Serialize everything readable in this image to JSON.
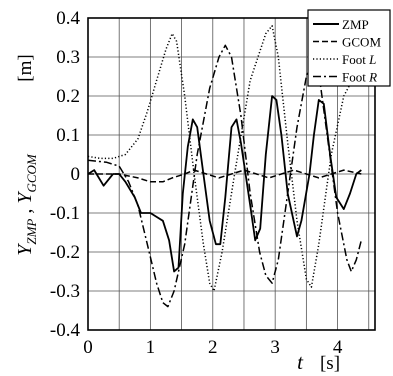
{
  "chart_data": {
    "type": "line",
    "xlabel": "t",
    "xunit": "[s]",
    "ylabel": "Y_ZMP , Y_GCOM",
    "yunit": "[m]",
    "xlim": [
      0,
      4.6
    ],
    "ylim": [
      -0.4,
      0.4
    ],
    "xticks": [
      "0",
      "1",
      "2",
      "3",
      "4"
    ],
    "yticks": [
      "0.4",
      "0.3",
      "0.2",
      "0.1",
      "0",
      "-0.1",
      "-0.2",
      "-0.3",
      "-0.4"
    ],
    "grid": true,
    "legend_position": "top-right",
    "series": [
      {
        "name": "ZMP",
        "style": "solid",
        "points": [
          [
            0,
            0.0
          ],
          [
            0.1,
            0.01
          ],
          [
            0.25,
            -0.03
          ],
          [
            0.4,
            0.0
          ],
          [
            0.5,
            0.0
          ],
          [
            0.6,
            -0.02
          ],
          [
            0.75,
            -0.06
          ],
          [
            0.85,
            -0.1
          ],
          [
            1.0,
            -0.1
          ],
          [
            1.1,
            -0.11
          ],
          [
            1.2,
            -0.12
          ],
          [
            1.3,
            -0.17
          ],
          [
            1.38,
            -0.25
          ],
          [
            1.45,
            -0.24
          ],
          [
            1.52,
            -0.05
          ],
          [
            1.6,
            0.07
          ],
          [
            1.68,
            0.14
          ],
          [
            1.75,
            0.12
          ],
          [
            1.85,
            0.0
          ],
          [
            1.95,
            -0.12
          ],
          [
            2.05,
            -0.18
          ],
          [
            2.12,
            -0.18
          ],
          [
            2.2,
            -0.06
          ],
          [
            2.3,
            0.12
          ],
          [
            2.38,
            0.14
          ],
          [
            2.45,
            0.08
          ],
          [
            2.6,
            -0.08
          ],
          [
            2.68,
            -0.17
          ],
          [
            2.76,
            -0.14
          ],
          [
            2.85,
            0.05
          ],
          [
            2.95,
            0.2
          ],
          [
            3.02,
            0.19
          ],
          [
            3.1,
            0.1
          ],
          [
            3.2,
            -0.05
          ],
          [
            3.35,
            -0.16
          ],
          [
            3.42,
            -0.12
          ],
          [
            3.55,
            0.0
          ],
          [
            3.62,
            0.1
          ],
          [
            3.7,
            0.19
          ],
          [
            3.78,
            0.18
          ],
          [
            3.88,
            0.05
          ],
          [
            3.98,
            -0.06
          ],
          [
            4.1,
            -0.09
          ],
          [
            4.2,
            -0.05
          ],
          [
            4.3,
            0.0
          ],
          [
            4.38,
            0.01
          ]
        ]
      },
      {
        "name": "GCOM",
        "style": "dashed",
        "points": [
          [
            0,
            0.0
          ],
          [
            0.5,
            0.0
          ],
          [
            0.8,
            -0.01
          ],
          [
            1.0,
            -0.02
          ],
          [
            1.2,
            -0.02
          ],
          [
            1.35,
            -0.01
          ],
          [
            1.55,
            0.0
          ],
          [
            1.7,
            0.01
          ],
          [
            1.9,
            0.0
          ],
          [
            2.1,
            -0.01
          ],
          [
            2.3,
            0.0
          ],
          [
            2.5,
            0.01
          ],
          [
            2.7,
            0.0
          ],
          [
            2.9,
            -0.01
          ],
          [
            3.1,
            0.0
          ],
          [
            3.3,
            0.01
          ],
          [
            3.5,
            0.0
          ],
          [
            3.7,
            -0.01
          ],
          [
            3.9,
            0.0
          ],
          [
            4.1,
            0.01
          ],
          [
            4.38,
            0.0
          ]
        ]
      },
      {
        "name": "Foot L",
        "style": "dotted",
        "points": [
          [
            0,
            0.045
          ],
          [
            0.2,
            0.04
          ],
          [
            0.4,
            0.04
          ],
          [
            0.6,
            0.05
          ],
          [
            0.8,
            0.09
          ],
          [
            0.95,
            0.16
          ],
          [
            1.1,
            0.24
          ],
          [
            1.25,
            0.32
          ],
          [
            1.35,
            0.36
          ],
          [
            1.42,
            0.34
          ],
          [
            1.55,
            0.2
          ],
          [
            1.7,
            0.0
          ],
          [
            1.85,
            -0.18
          ],
          [
            1.95,
            -0.28
          ],
          [
            2.02,
            -0.3
          ],
          [
            2.15,
            -0.2
          ],
          [
            2.35,
            0.0
          ],
          [
            2.6,
            0.24
          ],
          [
            2.85,
            0.36
          ],
          [
            2.95,
            0.38
          ],
          [
            3.05,
            0.3
          ],
          [
            3.2,
            0.08
          ],
          [
            3.35,
            -0.12
          ],
          [
            3.5,
            -0.27
          ],
          [
            3.58,
            -0.29
          ],
          [
            3.7,
            -0.18
          ],
          [
            3.9,
            0.05
          ],
          [
            4.1,
            0.2
          ],
          [
            4.3,
            0.26
          ],
          [
            4.38,
            0.28
          ]
        ]
      },
      {
        "name": "Foot R",
        "style": "dashdot",
        "points": [
          [
            0,
            0.035
          ],
          [
            0.3,
            0.03
          ],
          [
            0.5,
            0.02
          ],
          [
            0.65,
            -0.02
          ],
          [
            0.8,
            -0.08
          ],
          [
            0.95,
            -0.18
          ],
          [
            1.1,
            -0.28
          ],
          [
            1.2,
            -0.33
          ],
          [
            1.28,
            -0.34
          ],
          [
            1.38,
            -0.3
          ],
          [
            1.55,
            -0.18
          ],
          [
            1.75,
            0.05
          ],
          [
            1.95,
            0.22
          ],
          [
            2.1,
            0.3
          ],
          [
            2.2,
            0.33
          ],
          [
            2.3,
            0.3
          ],
          [
            2.45,
            0.15
          ],
          [
            2.6,
            -0.05
          ],
          [
            2.75,
            -0.2
          ],
          [
            2.85,
            -0.26
          ],
          [
            2.95,
            -0.28
          ],
          [
            3.05,
            -0.22
          ],
          [
            3.2,
            -0.05
          ],
          [
            3.35,
            0.12
          ],
          [
            3.5,
            0.25
          ],
          [
            3.62,
            0.3
          ],
          [
            3.7,
            0.26
          ],
          [
            3.85,
            0.08
          ],
          [
            4.0,
            -0.1
          ],
          [
            4.15,
            -0.22
          ],
          [
            4.22,
            -0.25
          ],
          [
            4.3,
            -0.22
          ],
          [
            4.38,
            -0.17
          ]
        ]
      }
    ]
  }
}
